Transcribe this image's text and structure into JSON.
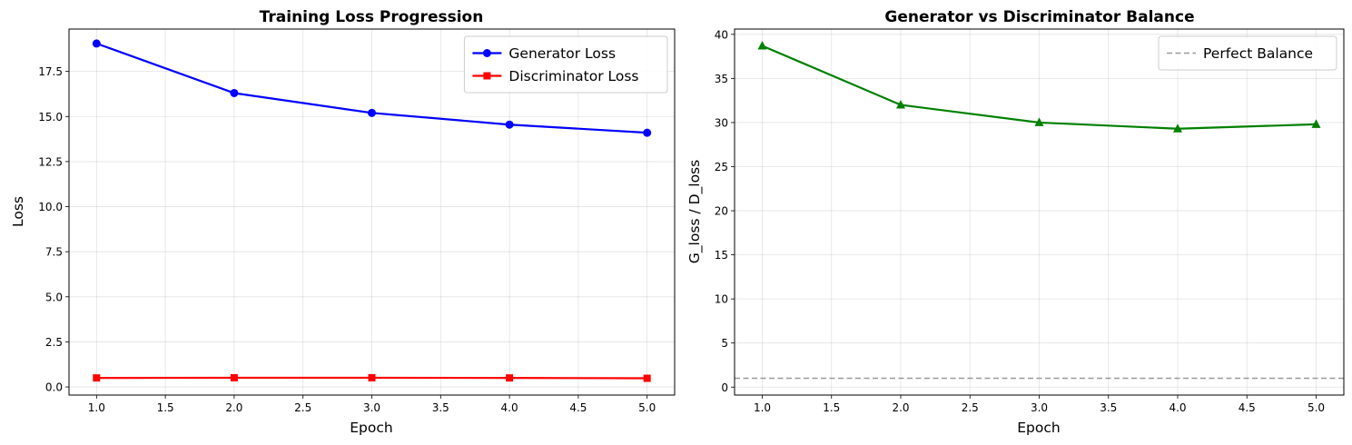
{
  "chart_data": [
    {
      "type": "line",
      "title": "Training Loss Progression",
      "xlabel": "Epoch",
      "ylabel": "Loss",
      "x": [
        1,
        2,
        3,
        4,
        5
      ],
      "xlim": [
        0.8,
        5.2
      ],
      "ylim": [
        -0.45,
        19.85
      ],
      "xticks": [
        1.0,
        1.5,
        2.0,
        2.5,
        3.0,
        3.5,
        4.0,
        4.5,
        5.0
      ],
      "xtick_labels": [
        "1.0",
        "1.5",
        "2.0",
        "2.5",
        "3.0",
        "3.5",
        "4.0",
        "4.5",
        "5.0"
      ],
      "yticks": [
        0,
        2.5,
        5,
        7.5,
        10,
        12.5,
        15,
        17.5
      ],
      "ytick_labels": [
        "0.0",
        "2.5",
        "5.0",
        "7.5",
        "10.0",
        "12.5",
        "15.0",
        "17.5"
      ],
      "grid": true,
      "legend_position": "top-right",
      "series": [
        {
          "name": "Generator Loss",
          "color": "#0000ff",
          "marker": "circle",
          "values": [
            19.05,
            16.3,
            15.2,
            14.55,
            14.1
          ]
        },
        {
          "name": "Discriminator Loss",
          "color": "#ff0000",
          "marker": "square",
          "values": [
            0.5,
            0.51,
            0.51,
            0.5,
            0.48
          ]
        }
      ]
    },
    {
      "type": "line",
      "title": "Generator vs Discriminator Balance",
      "xlabel": "Epoch",
      "ylabel": "G_loss / D_loss",
      "x": [
        1,
        2,
        3,
        4,
        5
      ],
      "xlim": [
        0.8,
        5.2
      ],
      "ylim": [
        -0.9,
        40.6
      ],
      "xticks": [
        1.0,
        1.5,
        2.0,
        2.5,
        3.0,
        3.5,
        4.0,
        4.5,
        5.0
      ],
      "xtick_labels": [
        "1.0",
        "1.5",
        "2.0",
        "2.5",
        "3.0",
        "3.5",
        "4.0",
        "4.5",
        "5.0"
      ],
      "yticks": [
        0,
        5,
        10,
        15,
        20,
        25,
        30,
        35,
        40
      ],
      "ytick_labels": [
        "0",
        "5",
        "10",
        "15",
        "20",
        "25",
        "30",
        "35",
        "40"
      ],
      "grid": true,
      "legend_position": "top-right",
      "series": [
        {
          "color": "#008000",
          "marker": "triangle",
          "values": [
            38.7,
            32.0,
            30.0,
            29.3,
            29.8
          ]
        }
      ],
      "reference_lines": [
        {
          "name": "Perfect Balance",
          "y": 1,
          "color": "#999999",
          "style": "dashed"
        }
      ]
    }
  ]
}
